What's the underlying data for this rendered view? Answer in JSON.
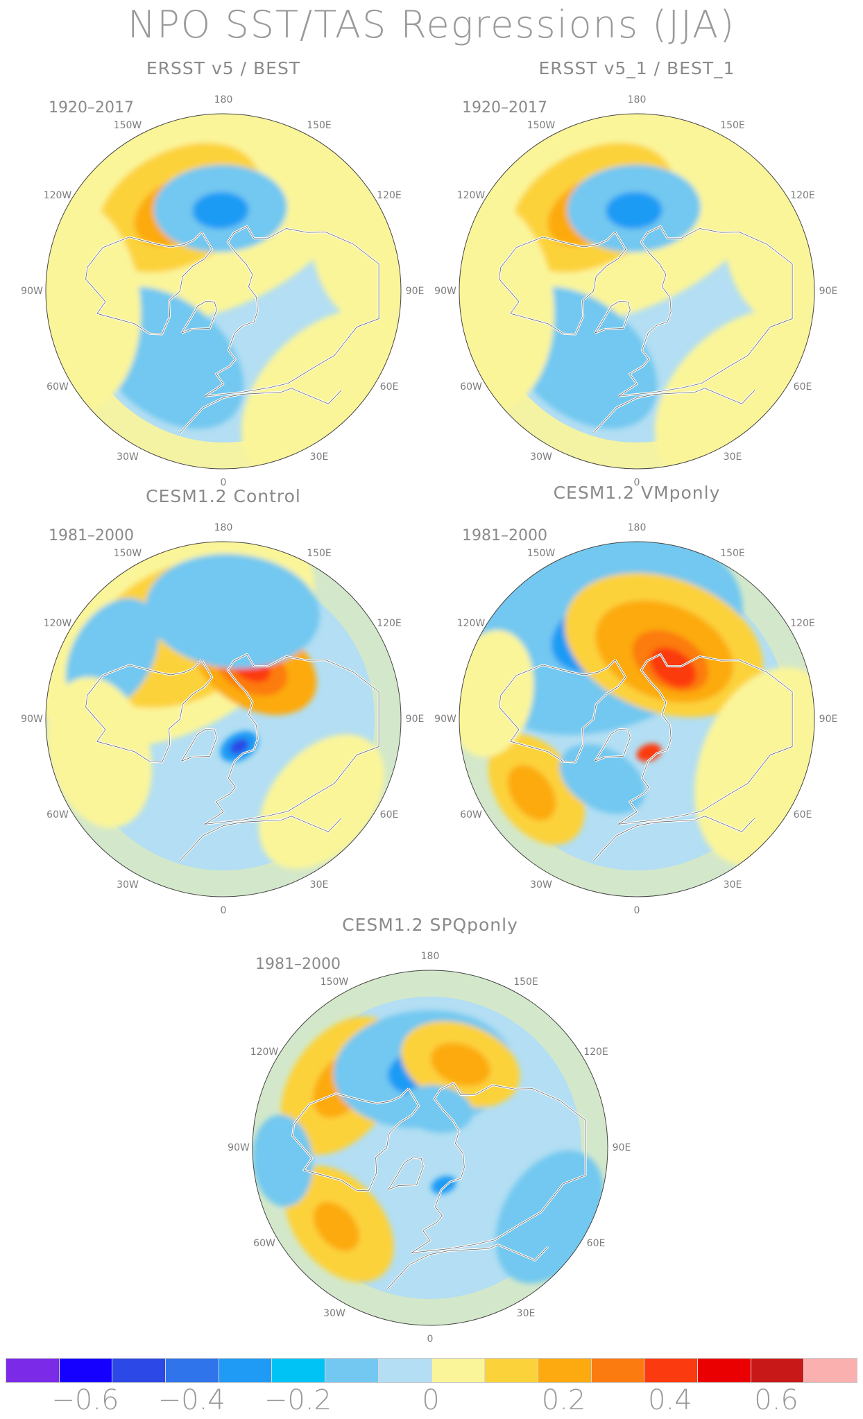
{
  "title": "NPO SST/TAS Regressions (JJA)",
  "compass": {
    "top": "180",
    "upper_left": "150W",
    "upper_right": "150E",
    "left_upper": "120W",
    "right_upper": "120E",
    "left": "90W",
    "right": "90E",
    "left_lower": "60W",
    "right_lower": "60E",
    "lower_left": "30W",
    "lower_right": "30E",
    "bottom": "0"
  },
  "panels": [
    {
      "title": "ERSST v5 / BEST",
      "period": "1920–2017"
    },
    {
      "title": "ERSST v5_1 / BEST_1",
      "period": "1920–2017"
    },
    {
      "title": "CESM1.2 Control",
      "period": "1981–2000"
    },
    {
      "title": "CESM1.2 VMponly",
      "period": "1981–2000"
    },
    {
      "title": "CESM1.2 SPQponly",
      "period": "1981–2000"
    }
  ],
  "colorbar": {
    "colors": [
      "#7b2ae8",
      "#1500ff",
      "#2c48e6",
      "#2f74ea",
      "#1f9bf5",
      "#00c3f5",
      "#72c8f0",
      "#b3def3",
      "#fbf59a",
      "#fcd23a",
      "#fcaa10",
      "#fc7b10",
      "#fc3a10",
      "#ea0000",
      "#c81818",
      "#fbb0b0"
    ],
    "labels": [
      "−0.6",
      "−0.4",
      "−0.2",
      "0",
      "0.2",
      "0.4",
      "0.6"
    ]
  },
  "fields": {
    "obs": [
      {
        "color": "#fbf59a",
        "lon": -160,
        "lat": 40,
        "r": 70
      },
      {
        "color": "#fcd23a",
        "lon": -152,
        "lat": 42,
        "r": 34
      },
      {
        "color": "#fcaa10",
        "lon": -150,
        "lat": 43,
        "r": 18
      },
      {
        "color": "#72c8f0",
        "lon": -178,
        "lat": 48,
        "r": 26
      },
      {
        "color": "#1f9bf5",
        "lon": -178,
        "lat": 49,
        "r": 11
      },
      {
        "color": "#72c8f0",
        "lon": -40,
        "lat": 46,
        "r": 34
      },
      {
        "color": "#fbf59a",
        "lon": -85,
        "lat": 12,
        "r": 42
      },
      {
        "color": "#fbf59a",
        "lon": 45,
        "lat": 15,
        "r": 40
      },
      {
        "color": "#fbf59a",
        "lon": 105,
        "lat": 18,
        "r": 28
      }
    ],
    "obs_dup": [
      {
        "color": "#fbf59a",
        "lon": -160,
        "lat": 40,
        "r": 70
      },
      {
        "color": "#fcd23a",
        "lon": -152,
        "lat": 42,
        "r": 34
      },
      {
        "color": "#fcaa10",
        "lon": -150,
        "lat": 43,
        "r": 18
      },
      {
        "color": "#72c8f0",
        "lon": -178,
        "lat": 48,
        "r": 26
      },
      {
        "color": "#1f9bf5",
        "lon": -178,
        "lat": 49,
        "r": 11
      },
      {
        "color": "#72c8f0",
        "lon": -40,
        "lat": 46,
        "r": 34
      },
      {
        "color": "#fbf59a",
        "lon": -85,
        "lat": 12,
        "r": 42
      },
      {
        "color": "#fbf59a",
        "lon": 45,
        "lat": 15,
        "r": 40
      },
      {
        "color": "#fbf59a",
        "lon": 105,
        "lat": 18,
        "r": 28
      }
    ],
    "control": [
      {
        "color": "#fbf59a",
        "lon": -150,
        "lat": 38,
        "r": 60
      },
      {
        "color": "#fcd23a",
        "lon": -155,
        "lat": 42,
        "r": 40
      },
      {
        "color": "#fcaa10",
        "lon": 150,
        "lat": 58,
        "r": 26
      },
      {
        "color": "#fc7b10",
        "lon": 152,
        "lat": 60,
        "r": 15
      },
      {
        "color": "#fc3a10",
        "lon": 152,
        "lat": 60,
        "r": 8
      },
      {
        "color": "#72c8f0",
        "lon": 175,
        "lat": 35,
        "r": 34
      },
      {
        "color": "#72c8f0",
        "lon": -120,
        "lat": 25,
        "r": 24
      },
      {
        "color": "#1f9bf5",
        "lon": 30,
        "lat": 74,
        "r": 8
      },
      {
        "color": "#2c48e6",
        "lon": 30,
        "lat": 74,
        "r": 4
      },
      {
        "color": "#fbf59a",
        "lon": -75,
        "lat": 25,
        "r": 30
      },
      {
        "color": "#fbf59a",
        "lon": 50,
        "lat": 25,
        "r": 30
      }
    ],
    "vmp": [
      {
        "color": "#72c8f0",
        "lon": -160,
        "lat": 45,
        "r": 55
      },
      {
        "color": "#1f9bf5",
        "lon": -160,
        "lat": 44,
        "r": 22
      },
      {
        "color": "#fcd23a",
        "lon": 160,
        "lat": 50,
        "r": 40
      },
      {
        "color": "#fcaa10",
        "lon": 158,
        "lat": 53,
        "r": 28
      },
      {
        "color": "#fc7b10",
        "lon": 150,
        "lat": 56,
        "r": 16
      },
      {
        "color": "#fc3a10",
        "lon": 145,
        "lat": 58,
        "r": 10
      },
      {
        "color": "#fcd23a",
        "lon": -55,
        "lat": 28,
        "r": 24
      },
      {
        "color": "#fcaa10",
        "lon": -55,
        "lat": 25,
        "r": 12
      },
      {
        "color": "#72c8f0",
        "lon": -30,
        "lat": 55,
        "r": 18
      },
      {
        "color": "#fc3a10",
        "lon": 20,
        "lat": 72,
        "r": 5
      },
      {
        "color": "#fbf59a",
        "lon": 70,
        "lat": 20,
        "r": 40
      },
      {
        "color": "#fbf59a",
        "lon": -100,
        "lat": 15,
        "r": 25
      }
    ],
    "spq": [
      {
        "color": "#fcd23a",
        "lon": -125,
        "lat": 35,
        "r": 30
      },
      {
        "color": "#fcaa10",
        "lon": -125,
        "lat": 35,
        "r": 14
      },
      {
        "color": "#72c8f0",
        "lon": -175,
        "lat": 50,
        "r": 35
      },
      {
        "color": "#1f9bf5",
        "lon": -175,
        "lat": 52,
        "r": 14
      },
      {
        "color": "#fcd23a",
        "lon": 160,
        "lat": 45,
        "r": 24
      },
      {
        "color": "#fcaa10",
        "lon": 160,
        "lat": 45,
        "r": 12
      },
      {
        "color": "#fcd23a",
        "lon": -50,
        "lat": 30,
        "r": 26
      },
      {
        "color": "#fcaa10",
        "lon": -50,
        "lat": 28,
        "r": 11
      },
      {
        "color": "#72c8f0",
        "lon": 170,
        "lat": 70,
        "r": 14
      },
      {
        "color": "#1f9bf5",
        "lon": 20,
        "lat": 70,
        "r": 5
      },
      {
        "color": "#72c8f0",
        "lon": 60,
        "lat": 20,
        "r": 28
      },
      {
        "color": "#72c8f0",
        "lon": -85,
        "lat": 15,
        "r": 18
      }
    ]
  }
}
